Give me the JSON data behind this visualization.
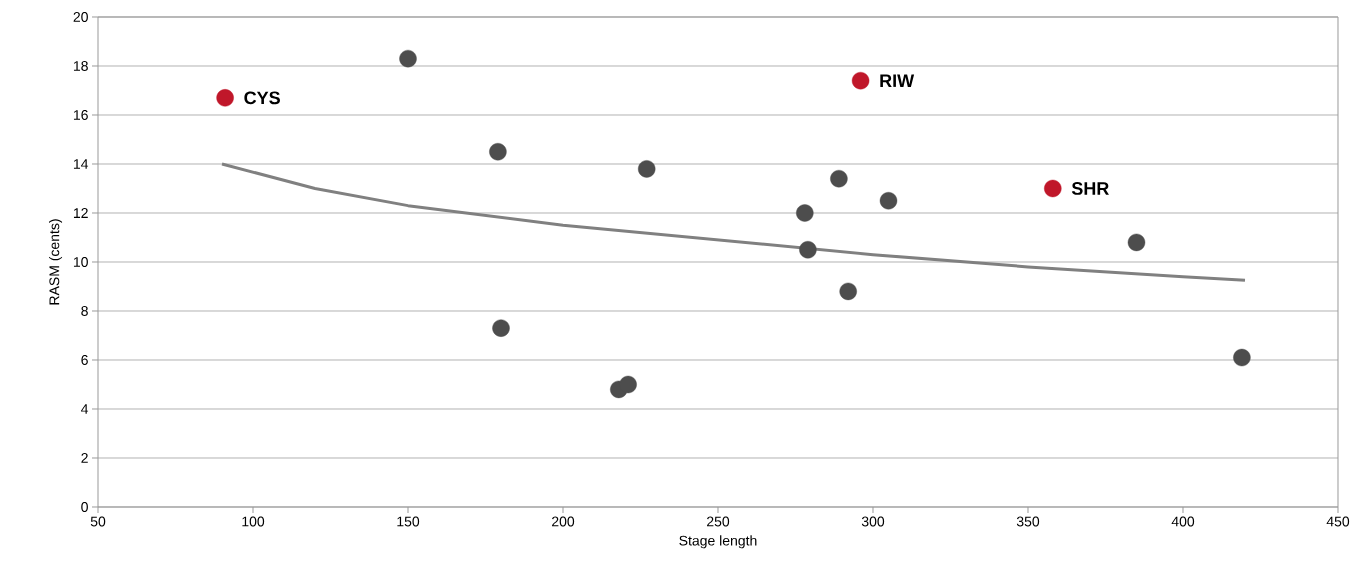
{
  "chart_data": {
    "type": "scatter",
    "xlabel": "Stage length",
    "ylabel": "RASM (cents)",
    "xlim": [
      50,
      450
    ],
    "ylim": [
      0,
      20
    ],
    "xticks": [
      50,
      100,
      150,
      200,
      250,
      300,
      350,
      400,
      450
    ],
    "yticks": [
      0,
      2,
      4,
      6,
      8,
      10,
      12,
      14,
      16,
      18,
      20
    ],
    "grid": "y",
    "series": [
      {
        "marker": "circle",
        "color": "#4d4d4d",
        "x": [
          150,
          179,
          180,
          227,
          218,
          221,
          278,
          279,
          289,
          292,
          305,
          385,
          419
        ],
        "values": [
          18.3,
          14.5,
          7.3,
          13.8,
          4.8,
          5.0,
          12.0,
          10.5,
          13.4,
          8.8,
          12.5,
          10.8,
          6.1
        ]
      },
      {
        "marker": "circle",
        "color": "#c0172a",
        "x": [
          91,
          296,
          358
        ],
        "values": [
          16.7,
          17.4,
          13.0
        ]
      },
      {
        "type": "line",
        "marker": "none",
        "color": "#808080",
        "x": [
          90,
          120,
          150,
          200,
          250,
          300,
          350,
          400,
          420
        ],
        "values": [
          14.0,
          13.0,
          12.3,
          11.5,
          10.9,
          10.3,
          9.8,
          9.4,
          9.25
        ]
      }
    ],
    "annotations": [
      {
        "text": "CYS",
        "x": 91,
        "y": 16.7
      },
      {
        "text": "RIW",
        "x": 296,
        "y": 17.4
      },
      {
        "text": "SHR",
        "x": 358,
        "y": 13.0
      }
    ]
  }
}
